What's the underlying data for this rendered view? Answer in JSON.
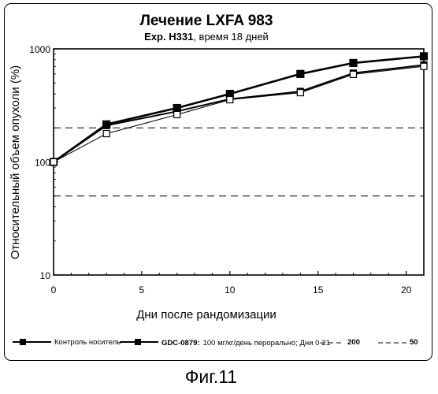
{
  "figure_label": "Фиг.11",
  "chart_data": {
    "type": "line",
    "title": "Лечение LXFA 983",
    "subtitle_prefix": "Exp. H331",
    "subtitle_rest": ", время 18 дней",
    "xlabel": "Дни после рандомизации",
    "ylabel": "Относительный объем опухоли (%)",
    "x_scale": "linear",
    "y_scale": "log",
    "xlim": [
      0,
      21
    ],
    "ylim": [
      10,
      1000
    ],
    "x_ticks": [
      0,
      5,
      10,
      15,
      20
    ],
    "x_tick_labels": [
      "0",
      "5",
      "10",
      "15",
      "20"
    ],
    "y_ticks": [
      10,
      100,
      1000
    ],
    "y_tick_labels": [
      "10",
      "100",
      "1000"
    ],
    "reference_lines": [
      {
        "value": 200,
        "label": "200"
      },
      {
        "value": 50,
        "label": "50"
      }
    ],
    "series": [
      {
        "name": "Контроль носитель",
        "marker": "filled-square",
        "x": [
          0,
          3,
          7,
          10,
          14,
          17,
          21
        ],
        "y": [
          100,
          215,
          300,
          400,
          600,
          750,
          860
        ]
      },
      {
        "name_bold": "GDC-0879:",
        "name": "100 мг/кг/день перорально; Дни 0-21",
        "marker": "filled-square",
        "x": [
          0,
          3,
          7,
          10,
          14,
          17,
          21
        ],
        "y": [
          100,
          210,
          280,
          360,
          420,
          610,
          720
        ]
      },
      {
        "marker": "open-square",
        "x": [
          0,
          3,
          7,
          10,
          14,
          17,
          21
        ],
        "y": [
          100,
          178,
          262,
          355,
          410,
          595,
          700
        ]
      }
    ],
    "legend_position": "bottom"
  }
}
